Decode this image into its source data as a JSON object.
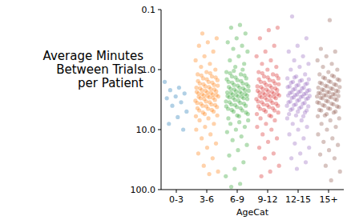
{
  "chart_data": {
    "type": "strip",
    "x_label": "AgeCat",
    "y_label": "Average Minutes\nBetween Trials\nper Patient",
    "log": "y",
    "grid": false,
    "ylim": [
      100,
      0.1
    ],
    "yticks": [
      0.1,
      {
        "value": 1,
        "label": "1.0"
      },
      {
        "value": 10,
        "label": "10.0"
      },
      {
        "value": 100,
        "label": "100.0"
      }
    ],
    "categories": [
      "0-3",
      "3-6",
      "6-9",
      "9-12",
      "12-15",
      "15+"
    ],
    "colors": [
      "#1f77b4",
      "#ff7f0e",
      "#2ca02c",
      "#d62728",
      "#9467bd",
      "#8c564b"
    ],
    "values": [
      [
        1.6,
        2.0,
        2.2,
        2.5,
        2.8,
        3.0,
        3.5,
        4.0,
        5.0,
        6.2,
        8.0,
        10.0
      ],
      [
        0.25,
        0.3,
        0.35,
        0.4,
        0.5,
        0.6,
        0.7,
        0.8,
        0.9,
        1.0,
        1.1,
        1.2,
        1.3,
        1.4,
        1.5,
        1.6,
        1.7,
        1.8,
        1.9,
        2.0,
        2.1,
        2.2,
        2.3,
        2.4,
        2.5,
        2.6,
        2.7,
        2.8,
        2.9,
        3.0,
        3.2,
        3.4,
        3.6,
        3.8,
        4.0,
        4.2,
        4.5,
        4.8,
        5.0,
        5.5,
        6.0,
        1.15,
        1.25,
        1.35,
        1.45,
        1.55,
        1.65,
        1.75,
        1.85,
        1.95,
        2.05,
        2.15,
        2.25,
        2.35,
        2.45,
        2.55,
        2.65,
        2.75,
        2.85,
        2.95,
        3.1,
        3.3,
        3.5,
        3.7,
        3.9,
        4.1,
        4.4,
        4.7,
        5.2,
        5.8,
        6.5,
        7,
        8,
        9,
        10,
        12,
        14,
        17,
        20,
        25,
        30,
        40,
        50,
        55
      ],
      [
        0.18,
        0.2,
        0.25,
        0.3,
        0.35,
        0.4,
        0.45,
        0.5,
        0.6,
        0.7,
        0.8,
        0.9,
        1.1,
        1.2,
        1.3,
        1.4,
        1.5,
        1.6,
        1.7,
        1.8,
        1.9,
        2.0,
        2.1,
        2.2,
        2.3,
        2.4,
        2.5,
        2.6,
        2.7,
        2.8,
        2.9,
        3.0,
        3.2,
        3.4,
        3.6,
        3.8,
        4.0,
        4.2,
        4.5,
        4.8,
        5.0,
        5.5,
        6.0,
        1.15,
        1.25,
        1.35,
        1.45,
        1.55,
        1.65,
        1.75,
        1.85,
        1.95,
        2.05,
        2.15,
        2.25,
        2.35,
        2.45,
        2.55,
        2.65,
        2.75,
        2.85,
        2.95,
        3.1,
        3.3,
        3.5,
        3.7,
        3.9,
        4.1,
        4.4,
        4.7,
        5.2,
        5.8,
        6.5,
        1.0,
        1.05,
        7,
        7.5,
        8,
        9,
        10,
        11,
        13,
        15,
        18,
        22,
        27,
        35,
        45,
        60,
        80,
        90
      ],
      [
        0.2,
        0.22,
        0.3,
        0.4,
        0.5,
        0.6,
        0.7,
        0.8,
        0.9,
        1.0,
        1.1,
        1.2,
        1.3,
        1.4,
        1.5,
        1.6,
        1.7,
        1.8,
        1.9,
        2.0,
        2.1,
        2.2,
        2.3,
        2.4,
        2.5,
        2.6,
        2.7,
        2.8,
        2.9,
        3.0,
        3.2,
        3.4,
        3.6,
        3.8,
        4.0,
        4.2,
        4.5,
        4.8,
        5.0,
        5.5,
        6.0,
        1.15,
        1.25,
        1.35,
        1.45,
        1.55,
        1.65,
        1.75,
        1.85,
        1.95,
        2.05,
        2.15,
        2.25,
        2.35,
        2.45,
        2.55,
        2.65,
        2.75,
        2.85,
        2.95,
        3.1,
        3.3,
        3.5,
        3.7,
        3.9,
        4.1,
        4.4,
        4.7,
        5.2,
        5.8,
        6.5,
        7,
        8,
        9,
        10,
        12,
        14,
        16,
        20,
        25,
        30,
        40,
        50,
        60
      ],
      [
        0.13,
        0.3,
        0.4,
        0.5,
        0.6,
        0.7,
        0.8,
        0.9,
        1.0,
        1.2,
        1.3,
        1.4,
        1.5,
        1.6,
        1.7,
        1.8,
        1.9,
        2.0,
        2.1,
        2.2,
        2.3,
        2.4,
        2.5,
        2.6,
        2.7,
        2.8,
        2.9,
        3.0,
        3.2,
        3.4,
        3.6,
        3.8,
        4.0,
        4.2,
        4.5,
        4.8,
        5.0,
        5.5,
        6.0,
        1.35,
        1.45,
        1.55,
        1.65,
        1.75,
        1.85,
        1.95,
        2.05,
        2.15,
        2.25,
        2.35,
        2.45,
        2.55,
        2.65,
        2.75,
        2.85,
        2.95,
        3.1,
        3.3,
        3.5,
        3.7,
        3.9,
        4.1,
        4.4,
        4.7,
        5.2,
        5.8,
        6.5,
        7,
        8,
        9,
        10,
        12,
        14,
        17,
        20,
        25,
        30,
        35,
        45
      ],
      [
        0.15,
        0.45,
        0.5,
        0.6,
        0.7,
        0.8,
        0.9,
        1.0,
        1.1,
        1.2,
        1.3,
        1.4,
        1.5,
        1.6,
        1.7,
        1.8,
        1.9,
        2.0,
        2.1,
        2.2,
        2.3,
        2.4,
        2.5,
        2.6,
        2.7,
        2.8,
        2.9,
        3.0,
        3.2,
        3.4,
        3.6,
        3.8,
        4.0,
        4.2,
        4.5,
        4.8,
        5.0,
        5.5,
        6.0,
        1.25,
        1.35,
        1.45,
        1.55,
        1.65,
        1.75,
        1.85,
        1.95,
        2.05,
        2.15,
        2.25,
        2.35,
        2.45,
        2.55,
        2.65,
        2.75,
        2.85,
        2.95,
        3.1,
        3.3,
        3.5,
        3.7,
        3.9,
        4.1,
        4.4,
        4.7,
        5.2,
        5.8,
        6.5,
        7,
        8,
        9,
        10,
        12,
        14,
        16,
        18,
        22,
        26,
        30,
        40,
        50,
        70
      ]
    ]
  }
}
